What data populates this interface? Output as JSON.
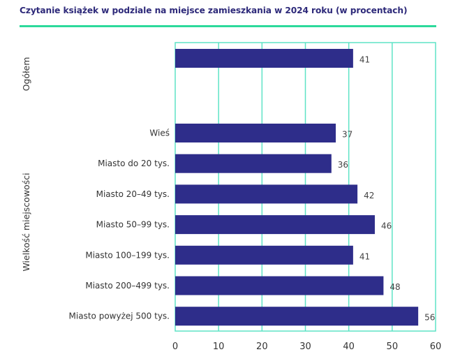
{
  "chart_data": {
    "type": "bar",
    "orientation": "horizontal",
    "title": "Czytanie książek w podziale na miejsce zamieszkania w 2024 roku (w procentach)",
    "xlabel": "",
    "ylabel": "",
    "xlim": [
      0,
      60
    ],
    "xticks": [
      0,
      10,
      20,
      30,
      40,
      50,
      60
    ],
    "grid": true,
    "groups": [
      {
        "name": "Ogółem",
        "categories": [
          ""
        ],
        "values": [
          41
        ]
      },
      {
        "name": "Wielkość miejscowości",
        "categories": [
          "Wieś",
          "Miasto do 20 tys.",
          "Miasto 20–49 tys.",
          "Miasto 50–99 tys.",
          "Miasto 100–199 tys.",
          "Miasto 200–499 tys.",
          "Miasto powyżej 500 tys."
        ],
        "values": [
          37,
          36,
          42,
          46,
          41,
          48,
          56
        ]
      }
    ],
    "colors": {
      "bar": "#2e2d8a",
      "grid": "#5ee3c6",
      "title": "#2e2a7a",
      "title_rule": "#2dd99b"
    }
  }
}
